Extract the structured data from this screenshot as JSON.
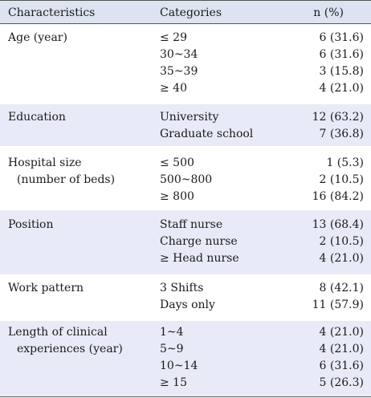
{
  "header": {
    "characteristics": "Characteristics",
    "categories": "Categories",
    "n_percent": "n (%)"
  },
  "groups": [
    {
      "label_lines": [
        "Age (year)"
      ],
      "rows": [
        {
          "category": "≤ 29",
          "value": "6 (31.6)"
        },
        {
          "category": "30~34",
          "value": "6 (31.6)"
        },
        {
          "category": "35~39",
          "value": "3 (15.8)"
        },
        {
          "category": "≥ 40",
          "value": "4 (21.0)"
        }
      ]
    },
    {
      "label_lines": [
        "Education"
      ],
      "rows": [
        {
          "category": "University",
          "value": "12 (63.2)"
        },
        {
          "category": "Graduate school",
          "value": "7 (36.8)"
        }
      ]
    },
    {
      "label_lines": [
        "Hospital size",
        "(number of beds)"
      ],
      "rows": [
        {
          "category": "≤ 500",
          "value": "1 (5.3)"
        },
        {
          "category": "500~800",
          "value": "2 (10.5)"
        },
        {
          "category": "≥ 800",
          "value": "16 (84.2)"
        }
      ]
    },
    {
      "label_lines": [
        "Position"
      ],
      "rows": [
        {
          "category": "Staff nurse",
          "value": "13 (68.4)"
        },
        {
          "category": "Charge nurse",
          "value": "2 (10.5)"
        },
        {
          "category": "≥ Head nurse",
          "value": "4 (21.0)"
        }
      ]
    },
    {
      "label_lines": [
        "Work pattern"
      ],
      "rows": [
        {
          "category": "3 Shifts",
          "value": "8 (42.1)"
        },
        {
          "category": "Days only",
          "value": "11 (57.9)"
        }
      ]
    },
    {
      "label_lines": [
        "Length of clinical",
        "experiences (year)"
      ],
      "rows": [
        {
          "category": "1~4",
          "value": "4 (21.0)"
        },
        {
          "category": "5~9",
          "value": "4 (21.0)"
        },
        {
          "category": "10~14",
          "value": "6 (31.6)"
        },
        {
          "category": "≥ 15",
          "value": "5 (26.3)"
        }
      ]
    }
  ]
}
